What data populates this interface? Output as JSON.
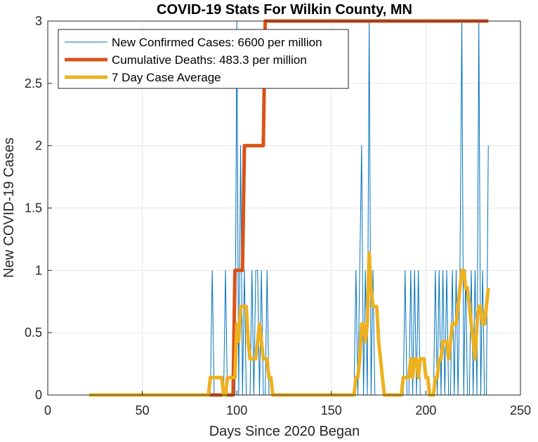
{
  "chart_data": {
    "type": "line",
    "title": "COVID-19 Stats For Wilkin County, MN",
    "xlabel": "Days Since 2020 Began",
    "ylabel": "New COVID-19 Cases",
    "xlim": [
      0,
      250
    ],
    "ylim": [
      0,
      3
    ],
    "xticks": [
      0,
      50,
      100,
      150,
      200,
      250
    ],
    "yticks": [
      0,
      0.5,
      1,
      1.5,
      2,
      2.5,
      3
    ],
    "xtick_labels": [
      "0",
      "50",
      "100",
      "150",
      "200",
      "250"
    ],
    "ytick_labels": [
      "0",
      "0.5",
      "1",
      "1.5",
      "2",
      "2.5",
      "3"
    ],
    "grid": true,
    "legend_position": "top-left",
    "series": [
      {
        "name": "New Confirmed Cases: 6600 per million",
        "color": "#0072BD",
        "line_width": 1,
        "x": [
          22,
          86,
          87,
          88,
          93,
          94,
          95,
          99,
          100,
          101,
          102,
          103,
          104,
          105,
          106,
          107,
          108,
          109,
          110,
          111,
          112,
          113,
          114,
          115,
          116,
          117,
          118,
          119,
          120,
          162,
          163,
          164,
          165,
          166,
          167,
          168,
          169,
          170,
          171,
          172,
          173,
          174,
          178,
          188,
          189,
          190,
          191,
          192,
          193,
          194,
          195,
          196,
          197,
          198,
          199,
          204,
          205,
          206,
          207,
          208,
          209,
          210,
          211,
          212,
          213,
          214,
          215,
          216,
          217,
          218,
          219,
          220,
          221,
          222,
          223,
          224,
          225,
          226,
          227,
          228,
          229,
          230,
          231,
          232,
          233
        ],
        "y": [
          0,
          0,
          1,
          0,
          0,
          1,
          0,
          0,
          3,
          0,
          2,
          0,
          1,
          0,
          0,
          0,
          1,
          0,
          1,
          1,
          0,
          1,
          0,
          0,
          1,
          0,
          0,
          0,
          0,
          0,
          1,
          0,
          1,
          2,
          0,
          1,
          0,
          3,
          0,
          1,
          0,
          0,
          0,
          0,
          1,
          0,
          0,
          1,
          0,
          1,
          0,
          1,
          0,
          0,
          0,
          0,
          1,
          0,
          1,
          0,
          1,
          0,
          1,
          0,
          0,
          1,
          0,
          1,
          0,
          1,
          3,
          0,
          1,
          0,
          0,
          1,
          0,
          1,
          0,
          3,
          0,
          1,
          0,
          0,
          2
        ]
      },
      {
        "name": "Cumulative Deaths: 483.3 per million",
        "color": "#D95319",
        "line_width": 5,
        "x": [
          22,
          98,
          99,
          103,
          104,
          114,
          115,
          233
        ],
        "y": [
          0,
          0,
          1,
          1,
          2,
          2,
          3,
          3
        ]
      },
      {
        "name": "7 Day Case Average",
        "color": "#EDB120",
        "line_width": 5,
        "x": [
          22,
          85,
          86,
          87,
          92,
          93,
          94,
          95,
          96,
          97,
          98,
          99,
          100,
          101,
          102,
          103,
          104,
          105,
          106,
          107,
          108,
          109,
          110,
          111,
          112,
          113,
          114,
          115,
          116,
          117,
          118,
          119,
          120,
          121,
          122,
          161,
          162,
          163,
          164,
          165,
          166,
          167,
          168,
          169,
          170,
          171,
          172,
          173,
          174,
          175,
          176,
          177,
          178,
          187,
          188,
          189,
          190,
          191,
          192,
          193,
          194,
          195,
          196,
          197,
          198,
          199,
          200,
          201,
          202,
          203,
          204,
          205,
          206,
          207,
          208,
          209,
          210,
          211,
          212,
          213,
          214,
          215,
          216,
          217,
          218,
          219,
          220,
          221,
          222,
          223,
          224,
          225,
          226,
          227,
          228,
          229,
          230,
          231,
          232,
          233
        ],
        "y": [
          0,
          0,
          0.14,
          0.14,
          0.14,
          0,
          0,
          0.14,
          0.14,
          0.14,
          0.14,
          0.14,
          0.57,
          0.43,
          0.71,
          0.71,
          0.71,
          0.71,
          0.43,
          0.29,
          0.29,
          0.29,
          0.29,
          0.43,
          0.57,
          0.43,
          0.29,
          0.29,
          0.29,
          0.14,
          0.14,
          0,
          0,
          0,
          0,
          0,
          0,
          0.14,
          0.14,
          0.29,
          0.57,
          0.57,
          0.43,
          0.57,
          1.14,
          0.86,
          0.71,
          0.71,
          0.71,
          0.43,
          0.29,
          0.14,
          0,
          0,
          0.14,
          0.14,
          0.14,
          0.14,
          0.29,
          0.14,
          0.29,
          0.29,
          0.14,
          0.29,
          0.29,
          0.29,
          0.14,
          0.14,
          0,
          0,
          0,
          0.14,
          0.14,
          0.29,
          0.29,
          0.43,
          0.43,
          0.43,
          0.29,
          0.43,
          0.57,
          0.57,
          0.57,
          0.71,
          0.86,
          1,
          1,
          0.86,
          0.86,
          0.71,
          0.57,
          0.43,
          0.29,
          0.57,
          0.71,
          0.71,
          0.57,
          0.57,
          0.71,
          0.86
        ]
      }
    ]
  }
}
